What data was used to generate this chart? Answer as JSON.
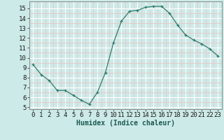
{
  "x": [
    0,
    1,
    2,
    3,
    4,
    5,
    6,
    7,
    8,
    9,
    10,
    11,
    12,
    13,
    14,
    15,
    16,
    17,
    18,
    19,
    20,
    21,
    22,
    23
  ],
  "y": [
    9.3,
    8.3,
    7.7,
    6.7,
    6.7,
    6.2,
    5.7,
    5.3,
    6.5,
    8.5,
    11.5,
    13.7,
    14.7,
    14.8,
    15.1,
    15.2,
    15.2,
    14.5,
    13.3,
    12.3,
    11.8,
    11.4,
    10.9,
    10.2
  ],
  "line_color": "#2d7d6f",
  "marker": "+",
  "marker_color": "#2d7d6f",
  "bg_color": "#cceae7",
  "grid_color_major": "#ffffff",
  "grid_color_minor": "#e8c8c8",
  "xlabel": "Humidex (Indice chaleur)",
  "xlim": [
    -0.5,
    23.5
  ],
  "ylim": [
    4.8,
    15.7
  ],
  "yticks": [
    5,
    6,
    7,
    8,
    9,
    10,
    11,
    12,
    13,
    14,
    15
  ],
  "xticks": [
    0,
    1,
    2,
    3,
    4,
    5,
    6,
    7,
    8,
    9,
    10,
    11,
    12,
    13,
    14,
    15,
    16,
    17,
    18,
    19,
    20,
    21,
    22,
    23
  ],
  "label_fontsize": 7,
  "tick_fontsize": 6.5
}
